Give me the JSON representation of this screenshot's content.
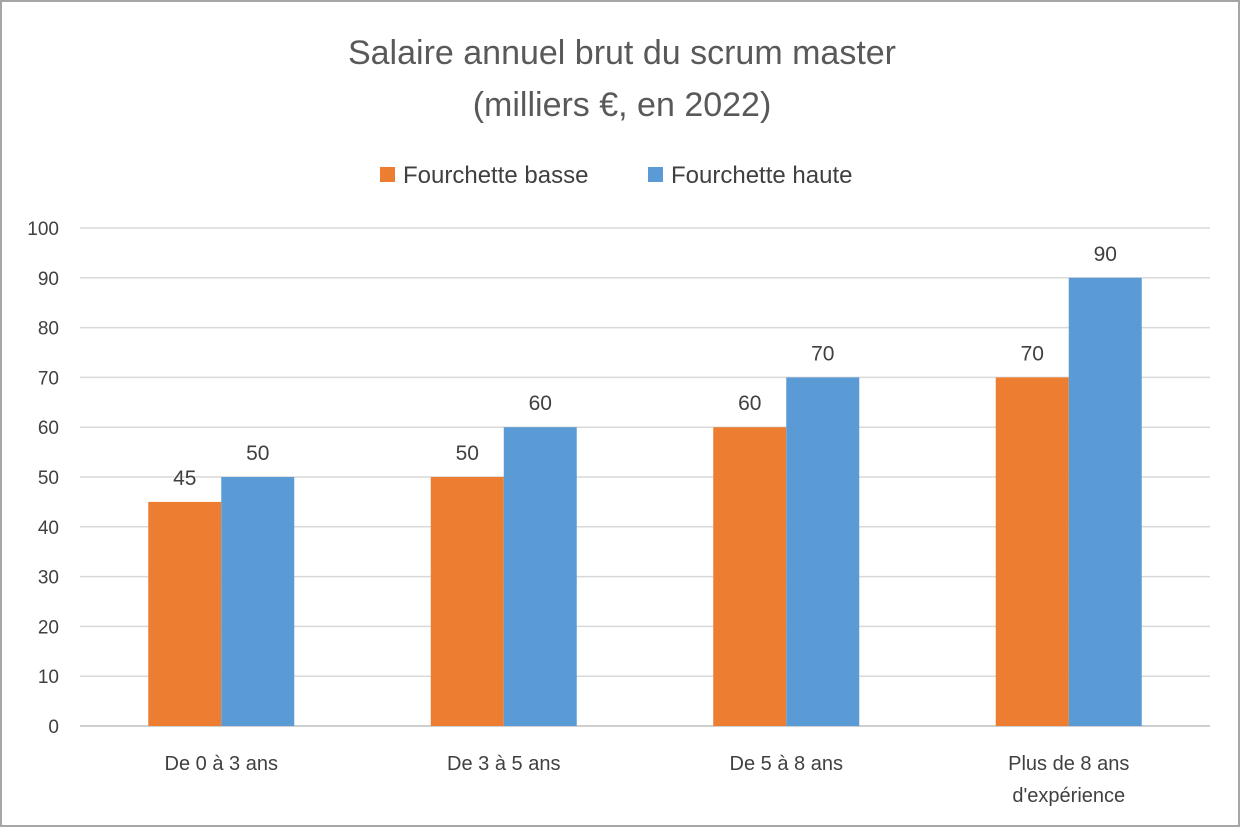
{
  "chart_data": {
    "type": "bar",
    "title": [
      "Salaire annuel brut du scrum master",
      "(milliers €, en 2022)"
    ],
    "xlabel": "",
    "ylabel": "",
    "categories": [
      [
        "De 0 à 3 ans"
      ],
      [
        "De 3 à 5 ans"
      ],
      [
        "De 5 à 8 ans"
      ],
      [
        "Plus de 8 ans",
        "d'expérience"
      ]
    ],
    "series": [
      {
        "name": "Fourchette basse",
        "color": "#ed7d31",
        "values": [
          45,
          50,
          60,
          70
        ]
      },
      {
        "name": "Fourchette haute",
        "color": "#5b9bd5",
        "values": [
          50,
          60,
          70,
          90
        ]
      }
    ],
    "ylim": [
      0,
      100
    ],
    "yticks": [
      0,
      10,
      20,
      30,
      40,
      50,
      60,
      70,
      80,
      90,
      100
    ],
    "grid": true,
    "legend_position": "top",
    "data_labels": true
  }
}
